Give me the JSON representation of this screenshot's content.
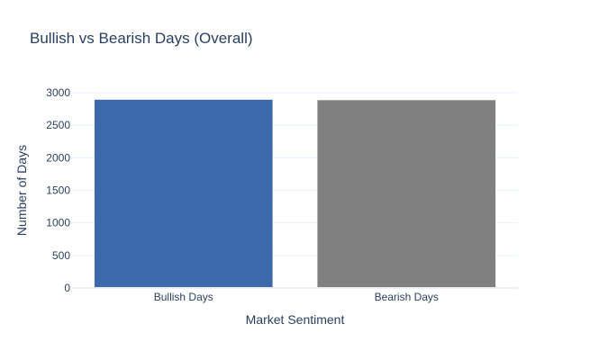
{
  "chart_data": {
    "type": "bar",
    "title": "Bullish vs Bearish Days (Overall)",
    "xlabel": "Market Sentiment",
    "ylabel": "Number of Days",
    "categories": [
      "Bullish Days",
      "Bearish Days"
    ],
    "values": [
      2895,
      2888
    ],
    "colors": [
      "#3c69ac",
      "#808080"
    ],
    "ylim": [
      0,
      3000
    ],
    "yticks": [
      0,
      500,
      1000,
      1500,
      2000,
      2500,
      3000
    ],
    "grid": true,
    "legend": "none"
  }
}
